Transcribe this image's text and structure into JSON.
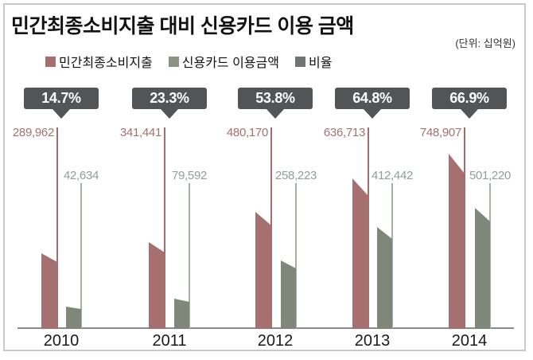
{
  "title": "민간최종소비지출 대비 신용카드 이용 금액",
  "unit_note": "(단위: 십억원)",
  "legend": [
    {
      "label": "민간최종소비지출",
      "color": "#a76e6e"
    },
    {
      "label": "신용카드 이용금액",
      "color": "#8a9484"
    },
    {
      "label": "비율",
      "color": "#717475"
    }
  ],
  "chart_data": {
    "type": "bar",
    "title": "민간최종소비지출 대비 신용카드 이용 금액",
    "unit": "십억원",
    "categories": [
      "2010",
      "2011",
      "2012",
      "2013",
      "2014"
    ],
    "series": [
      {
        "name": "민간최종소비지출",
        "values": [
          289962,
          341441,
          480170,
          636713,
          748907
        ],
        "display": [
          "289,962",
          "341,441",
          "480,170",
          "636,713",
          "748,907"
        ],
        "color": "#a67071"
      },
      {
        "name": "신용카드 이용금액",
        "values": [
          42634,
          79592,
          258223,
          412442,
          501220
        ],
        "display": [
          "42,634",
          "79,592",
          "258,223",
          "412,442",
          "501,220"
        ],
        "color": "#7e8779"
      },
      {
        "name": "비율",
        "values": [
          14.7,
          23.3,
          53.8,
          64.8,
          66.9
        ],
        "display": [
          "14.7%",
          "23.3%",
          "53.8%",
          "64.8%",
          "66.9%"
        ],
        "color": "#525456"
      }
    ],
    "legend_position": "top",
    "grid": false,
    "baseline_axis": true,
    "value_labels_shown": true
  }
}
